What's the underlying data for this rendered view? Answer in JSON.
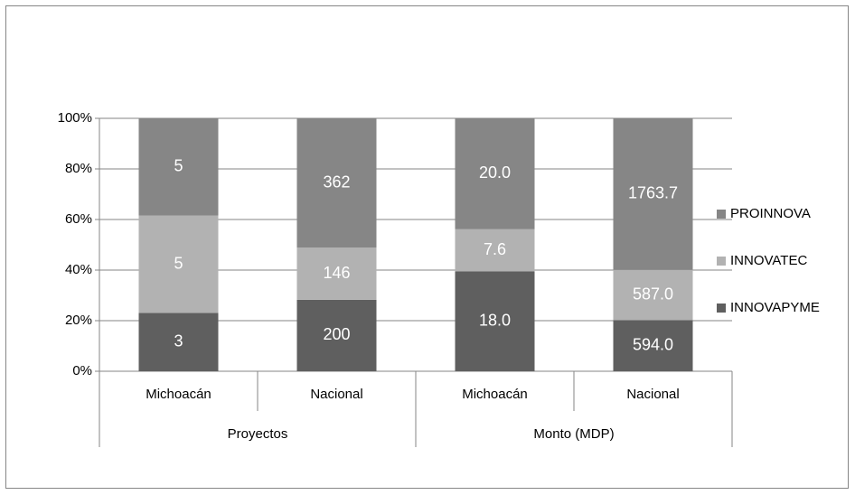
{
  "chart_data": {
    "type": "bar",
    "stacking": "percent",
    "categories": [
      "Michoacán",
      "Nacional",
      "Michoacán",
      "Nacional"
    ],
    "groups": [
      "Proyectos",
      "Monto (MDP)"
    ],
    "series": [
      {
        "name": "INNOVAPYME",
        "color": "#5f5f5f",
        "values": [
          3,
          200,
          18.0,
          594.0
        ],
        "value_labels": [
          "3",
          "200",
          "18.0",
          "594.0"
        ]
      },
      {
        "name": "INNOVATEC",
        "color": "#b2b2b2",
        "values": [
          5,
          146,
          7.6,
          587.0
        ],
        "value_labels": [
          "5",
          "146",
          "7.6",
          "587.0"
        ]
      },
      {
        "name": "PROINNOVA",
        "color": "#868686",
        "values": [
          5,
          362,
          20.0,
          1763.7
        ],
        "value_labels": [
          "5",
          "362",
          "20.0",
          "1763.7"
        ]
      }
    ],
    "ylim": [
      0,
      100
    ],
    "yticks": [
      {
        "value": 0,
        "label": "0%"
      },
      {
        "value": 20,
        "label": "20%"
      },
      {
        "value": 40,
        "label": "40%"
      },
      {
        "value": 60,
        "label": "60%"
      },
      {
        "value": 80,
        "label": "80%"
      },
      {
        "value": 100,
        "label": "100%"
      }
    ],
    "grid": true,
    "legend": "right"
  }
}
